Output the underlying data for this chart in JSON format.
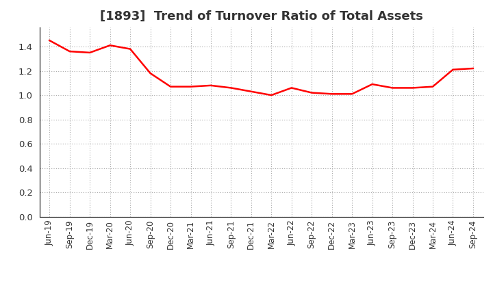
{
  "title": "[1893]  Trend of Turnover Ratio of Total Assets",
  "line_color": "#FF0000",
  "line_width": 1.8,
  "background_color": "#FFFFFF",
  "grid_color": "#AAAAAA",
  "text_color": "#333333",
  "ylim": [
    0.0,
    1.56
  ],
  "yticks": [
    0.0,
    0.2,
    0.4,
    0.6,
    0.8,
    1.0,
    1.2,
    1.4
  ],
  "labels": [
    "Jun-19",
    "Sep-19",
    "Dec-19",
    "Mar-20",
    "Jun-20",
    "Sep-20",
    "Dec-20",
    "Mar-21",
    "Jun-21",
    "Sep-21",
    "Dec-21",
    "Mar-22",
    "Jun-22",
    "Sep-22",
    "Dec-22",
    "Mar-23",
    "Jun-23",
    "Sep-23",
    "Dec-23",
    "Mar-24",
    "Jun-24",
    "Sep-24"
  ],
  "values": [
    1.45,
    1.36,
    1.35,
    1.41,
    1.38,
    1.18,
    1.07,
    1.07,
    1.08,
    1.06,
    1.03,
    1.0,
    1.06,
    1.02,
    1.01,
    1.01,
    1.09,
    1.06,
    1.06,
    1.07,
    1.21,
    1.22
  ],
  "title_fontsize": 13,
  "tick_fontsize": 8.5,
  "ytick_fontsize": 9.5
}
